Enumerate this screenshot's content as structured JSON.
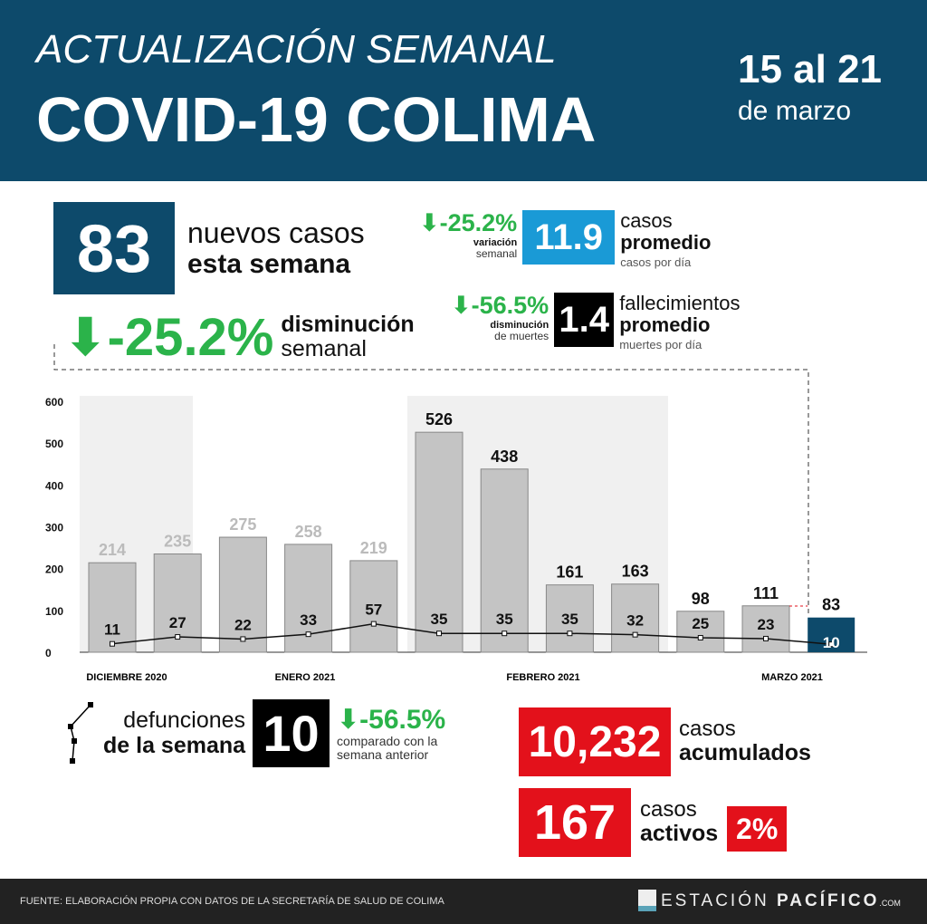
{
  "header": {
    "subtitle": "ACTUALIZACIÓN SEMANAL",
    "title": "COVID-19 COLIMA",
    "date_range": "15 al 21",
    "date_month": "de marzo"
  },
  "new_cases": {
    "value": "83",
    "line1": "nuevos casos",
    "line2": "esta semana"
  },
  "weekly_change": {
    "value": "-25.2%",
    "line1": "disminución",
    "line2": "semanal"
  },
  "avg_cases": {
    "variation": "-25.2%",
    "var_l1": "variación",
    "var_l2": "semanal",
    "value": "11.9",
    "l1": "casos",
    "l2": "promedio",
    "l3": "casos por día"
  },
  "avg_deaths": {
    "variation": "-56.5%",
    "var_l1": "disminución",
    "var_l2": "de muertes",
    "value": "1.4",
    "l1": "fallecimientos",
    "l2": "promedio",
    "l3": "muertes por día"
  },
  "weekly_deaths": {
    "l1": "defunciones",
    "l2": "de la semana",
    "value": "10",
    "variation": "-56.5%",
    "note1": "comparado con la",
    "note2": "semana anterior"
  },
  "cumulative": {
    "value": "10,232",
    "l1": "casos",
    "l2": "acumulados"
  },
  "active": {
    "value": "167",
    "l1": "casos",
    "l2": "activos",
    "percent": "2%"
  },
  "footer": {
    "source": "FUENTE: ELABORACIÓN PROPIA CON DATOS DE LA SECRETARÍA DE SALUD DE COLIMA",
    "brand_a": "ESTACIÓN",
    "brand_b": "PACÍFICO",
    ".com": ".com",
    "brand_c": ".COM"
  },
  "colors": {
    "navy": "#0d4a6b",
    "blue": "#1a9ad6",
    "green": "#2bb34a",
    "red": "#e3111b",
    "bar": "#c4c4c4"
  },
  "chart_data": {
    "type": "bar",
    "categories": [
      "w1",
      "w2",
      "w3",
      "w4",
      "w5",
      "w6",
      "w7",
      "w8",
      "w9",
      "w10",
      "w11",
      "w12"
    ],
    "series": [
      {
        "name": "casos",
        "values": [
          214,
          235,
          275,
          258,
          219,
          526,
          438,
          161,
          163,
          98,
          111,
          83
        ]
      },
      {
        "name": "defunciones",
        "type": "line",
        "values": [
          11,
          27,
          22,
          33,
          57,
          35,
          35,
          35,
          32,
          25,
          23,
          10
        ]
      }
    ],
    "yticks": [
      "0",
      "100",
      "200",
      "300",
      "400",
      "500",
      "600"
    ],
    "ylim": [
      0,
      600
    ],
    "month_labels": [
      "DICIEMBRE 2020",
      "ENERO 2021",
      "FEBRERO 2021",
      "MARZO 2021"
    ]
  }
}
